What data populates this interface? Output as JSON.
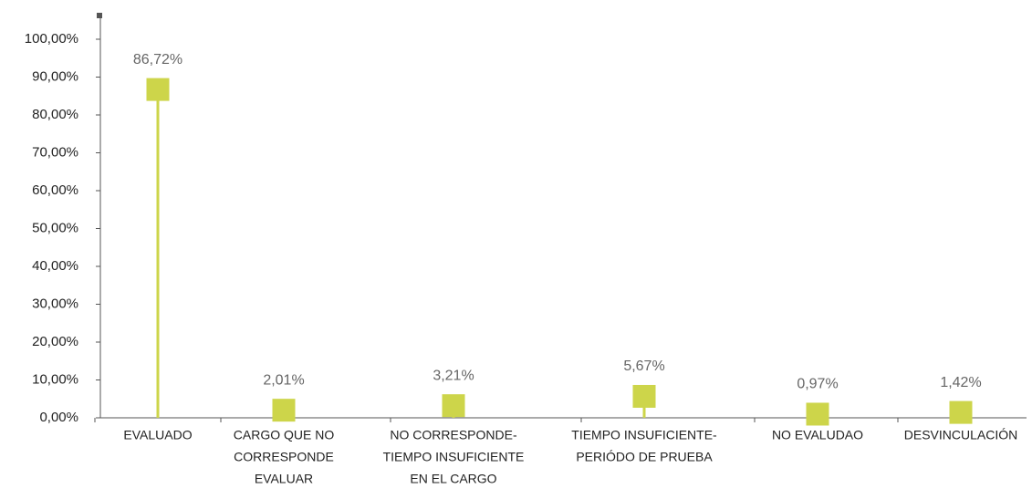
{
  "chart_data": {
    "type": "lollipop",
    "categories": [
      [
        "EVALUADO"
      ],
      [
        "CARGO QUE NO",
        "CORRESPONDE",
        "EVALUAR"
      ],
      [
        "NO CORRESPONDE-",
        "TIEMPO INSUFICIENTE",
        "EN EL CARGO"
      ],
      [
        "TIEMPO INSUFICIENTE-",
        "PERIÓDO DE PRUEBA"
      ],
      [
        "NO EVALUDAO"
      ],
      [
        "DESVINCULACIÓN"
      ]
    ],
    "values": [
      86.72,
      2.01,
      3.21,
      5.67,
      0.97,
      1.42
    ],
    "value_labels": [
      "86,72%",
      "2,01%",
      "3,21%",
      "5,67%",
      "0,97%",
      "1,42%"
    ],
    "color": "#cdd54a",
    "ylim": [
      0,
      100
    ],
    "yticks": [
      {
        "value": 0,
        "label": "0,00%"
      },
      {
        "value": 10,
        "label": "10,00%"
      },
      {
        "value": 20,
        "label": "20,00%"
      },
      {
        "value": 30,
        "label": "30,00%"
      },
      {
        "value": 40,
        "label": "40,00%"
      },
      {
        "value": 50,
        "label": "50,00%"
      },
      {
        "value": 60,
        "label": "60,00%"
      },
      {
        "value": 70,
        "label": "70,00%"
      },
      {
        "value": 80,
        "label": "80,00%"
      },
      {
        "value": 90,
        "label": "90,00%"
      },
      {
        "value": 100,
        "label": "100,00%"
      }
    ]
  }
}
